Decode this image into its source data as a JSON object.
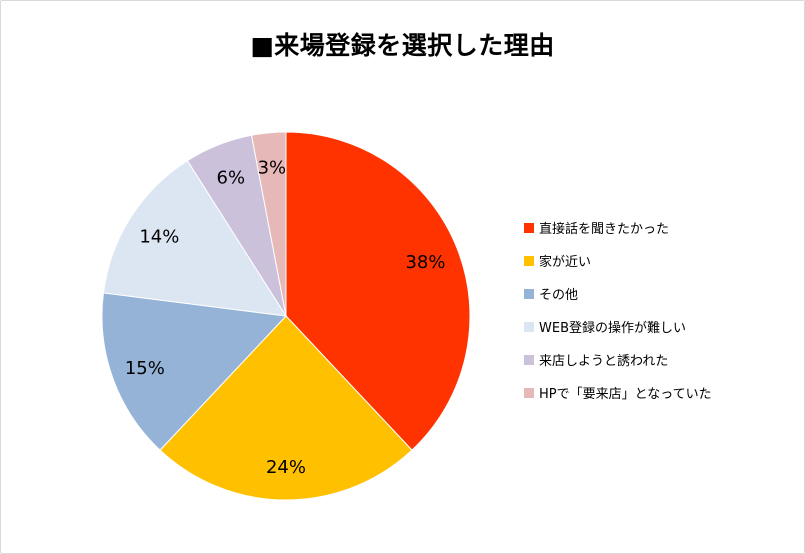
{
  "chart_data": {
    "type": "pie",
    "title": "■来場登録を選択した理由",
    "slices": [
      {
        "label": "直接話を聞きたかった",
        "value": 38,
        "display": "38%",
        "color": "#ff3300"
      },
      {
        "label": "家が近い",
        "value": 24,
        "display": "24%",
        "color": "#ffc000"
      },
      {
        "label": "その他",
        "value": 15,
        "display": "15%",
        "color": "#95b3d7"
      },
      {
        "label": "WEB登録の操作が難しい",
        "value": 14,
        "display": "14%",
        "color": "#dce6f2"
      },
      {
        "label": "来店しようと誘われた",
        "value": 6,
        "display": "6%",
        "color": "#ccc1da"
      },
      {
        "label": "HPで「要来店」となっていた",
        "value": 3,
        "display": "3%",
        "color": "#e6b9b8"
      }
    ],
    "legend_position": "right"
  }
}
